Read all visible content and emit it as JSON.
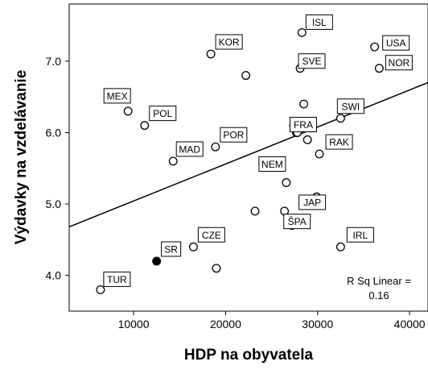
{
  "chart_data": {
    "type": "scatter",
    "xlabel": "HDP na obyvatela",
    "ylabel": "Výdavky na vzdelávanie",
    "xlim": [
      3000,
      42000
    ],
    "ylim": [
      3.5,
      7.8
    ],
    "xticks": [
      10000,
      20000,
      30000,
      40000
    ],
    "yticks": [
      4.0,
      5.0,
      6.0,
      7.0
    ],
    "ytick_labels": [
      "4.0",
      "5.0",
      "6.0",
      "7.0"
    ],
    "grid": false,
    "points": [
      {
        "x": 28300,
        "y": 7.4,
        "label": "ISL",
        "filled": false
      },
      {
        "x": 36200,
        "y": 7.2,
        "label": "USA",
        "filled": false
      },
      {
        "x": 18400,
        "y": 7.1,
        "label": "KOR",
        "filled": false
      },
      {
        "x": 28100,
        "y": 6.9,
        "label": "SVE",
        "filled": false
      },
      {
        "x": 36700,
        "y": 6.9,
        "label": "NOR",
        "filled": false
      },
      {
        "x": 22200,
        "y": 6.8,
        "label": "",
        "filled": false
      },
      {
        "x": 9400,
        "y": 6.3,
        "label": "MEX",
        "filled": false
      },
      {
        "x": 28500,
        "y": 6.4,
        "label": "",
        "filled": false
      },
      {
        "x": 32500,
        "y": 6.2,
        "label": "SWI",
        "filled": false
      },
      {
        "x": 11200,
        "y": 6.1,
        "label": "POL",
        "filled": false
      },
      {
        "x": 27400,
        "y": 6.1,
        "label": "",
        "filled": false
      },
      {
        "x": 27700,
        "y": 6.0,
        "label": "FRA",
        "filled": false
      },
      {
        "x": 27800,
        "y": 6.0,
        "label": "",
        "filled": false
      },
      {
        "x": 28900,
        "y": 5.9,
        "label": "",
        "filled": false
      },
      {
        "x": 18900,
        "y": 5.8,
        "label": "POR",
        "filled": false
      },
      {
        "x": 30200,
        "y": 5.7,
        "label": "RAK",
        "filled": false
      },
      {
        "x": 14300,
        "y": 5.6,
        "label": "MAD",
        "filled": false
      },
      {
        "x": 26600,
        "y": 5.3,
        "label": "NEM",
        "filled": false
      },
      {
        "x": 29900,
        "y": 5.1,
        "label": "",
        "filled": false
      },
      {
        "x": 23200,
        "y": 4.9,
        "label": "",
        "filled": false
      },
      {
        "x": 26400,
        "y": 4.9,
        "label": "JAP",
        "filled": false
      },
      {
        "x": 27200,
        "y": 4.7,
        "label": "ŠPA",
        "filled": false
      },
      {
        "x": 16500,
        "y": 4.4,
        "label": "CZE",
        "filled": false
      },
      {
        "x": 32500,
        "y": 4.4,
        "label": "IRL",
        "filled": false
      },
      {
        "x": 12500,
        "y": 4.2,
        "label": "SR",
        "filled": true
      },
      {
        "x": 19000,
        "y": 4.1,
        "label": "",
        "filled": false
      },
      {
        "x": 6400,
        "y": 3.8,
        "label": "TUR",
        "filled": false
      }
    ],
    "fit_line": {
      "x": [
        3000,
        42000
      ],
      "y": [
        4.68,
        6.7
      ]
    },
    "annotation": [
      "R Sq Linear =",
      "0.16"
    ]
  }
}
